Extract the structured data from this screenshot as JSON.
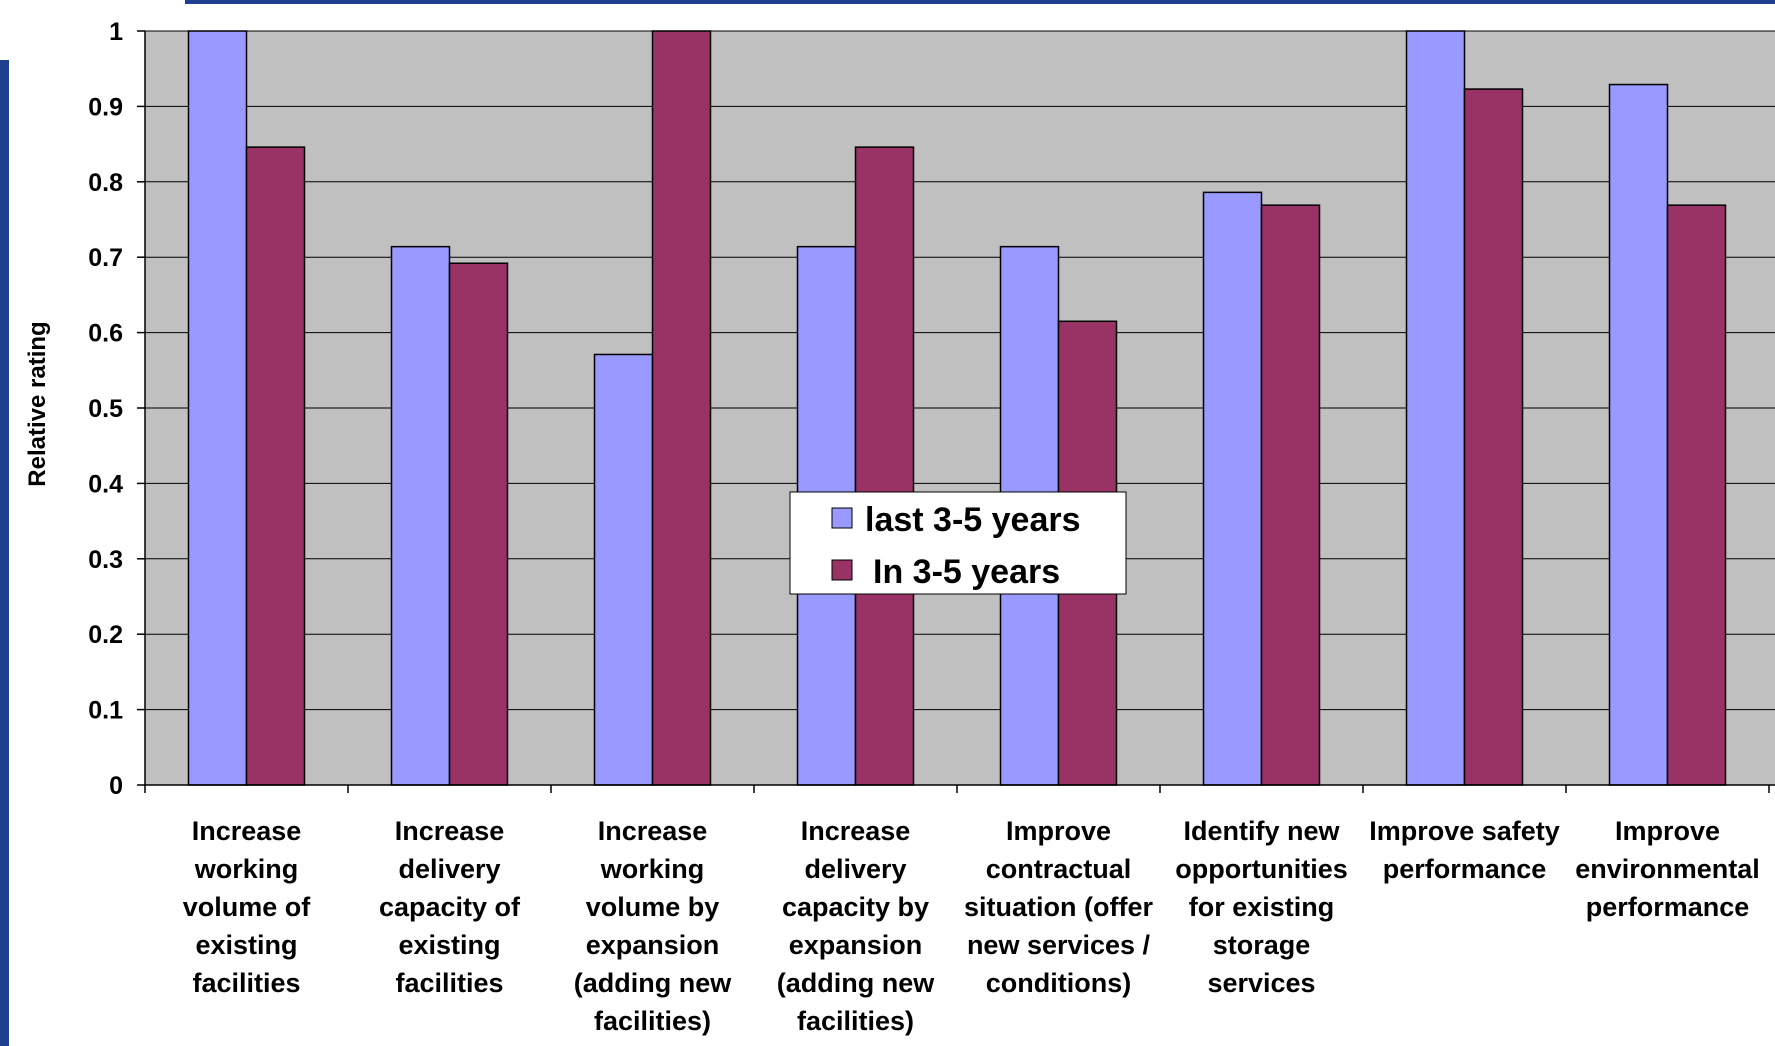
{
  "colors": {
    "plot_background": "#c0c0c0",
    "frame_accent": "#1f3f8f",
    "gridline": "#000000"
  },
  "chart_data": {
    "type": "bar",
    "title": "",
    "xlabel": "",
    "ylabel": "Relative rating",
    "ylim": [
      0,
      1
    ],
    "yticks": [
      0,
      0.1,
      0.2,
      0.3,
      0.4,
      0.5,
      0.6,
      0.7,
      0.8,
      0.9,
      1
    ],
    "ytick_labels": [
      "0",
      "0.1",
      "0.2",
      "0.3",
      "0.4",
      "0.5",
      "0.6",
      "0.7",
      "0.8",
      "0.9",
      "1"
    ],
    "grid": true,
    "legend_position": "center",
    "categories": [
      [
        "Increase",
        "working",
        "volume of",
        "existing",
        "facilities"
      ],
      [
        "Increase",
        "delivery",
        "capacity of",
        "existing",
        "facilities"
      ],
      [
        "Increase",
        "working",
        "volume by",
        "expansion",
        "(adding new",
        "facilities)"
      ],
      [
        "Increase",
        "delivery",
        "capacity by",
        "expansion",
        "(adding new",
        "facilities)"
      ],
      [
        "Improve",
        "contractual",
        "situation (offer",
        "new services /",
        "conditions)"
      ],
      [
        "Identify new",
        "opportunities",
        "for existing",
        "storage",
        "services"
      ],
      [
        "Improve safety",
        "performance"
      ],
      [
        "Improve",
        "environmental",
        "performance"
      ]
    ],
    "series": [
      {
        "name": "last 3-5 years",
        "color": "#9999ff",
        "values": [
          1.0,
          0.714,
          0.571,
          0.714,
          0.714,
          0.786,
          1.0,
          0.929
        ]
      },
      {
        "name": "In 3-5 years",
        "color": "#993366",
        "values": [
          0.846,
          0.692,
          1.0,
          0.846,
          0.615,
          0.769,
          0.923,
          0.769
        ]
      }
    ]
  }
}
